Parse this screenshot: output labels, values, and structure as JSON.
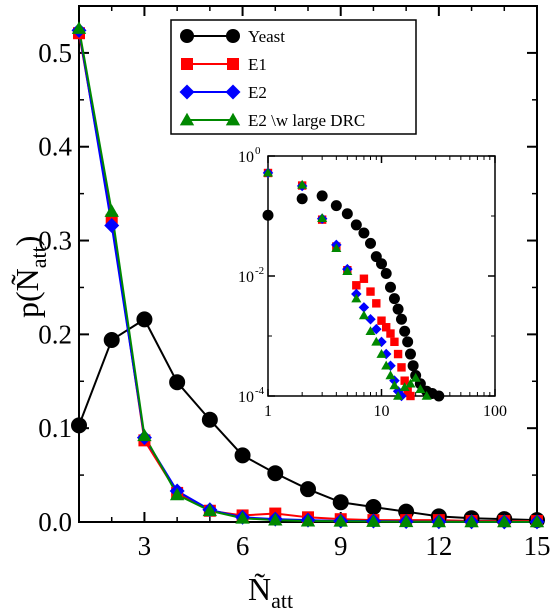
{
  "chart_data": [
    {
      "type": "line",
      "title": "",
      "xlabel": "Ñ",
      "xlabel_sub": "att",
      "ylabel": "p(Ñ",
      "ylabel_sub": "att",
      "ylabel_close": ")",
      "xlim": [
        1,
        15
      ],
      "ylim": [
        0,
        0.55
      ],
      "xticks": [
        3,
        6,
        9,
        12,
        15
      ],
      "yticks": [
        0.0,
        0.1,
        0.2,
        0.3,
        0.4,
        0.5
      ],
      "ytick_labels": [
        "0.0",
        "0.1",
        "0.2",
        "0.3",
        "0.4",
        "0.5"
      ],
      "legend_position": "top-center",
      "series": [
        {
          "name": "Yeast",
          "color": "#000000",
          "marker": "circle",
          "x": [
            1,
            2,
            3,
            4,
            5,
            6,
            7,
            8,
            9,
            10,
            11,
            12,
            13,
            14,
            15
          ],
          "values": [
            0.103,
            0.194,
            0.216,
            0.149,
            0.109,
            0.071,
            0.052,
            0.035,
            0.021,
            0.016,
            0.011,
            0.006,
            0.004,
            0.003,
            0.002
          ]
        },
        {
          "name": "E1",
          "color": "#ff0000",
          "marker": "square",
          "x": [
            1,
            2,
            3,
            4,
            5,
            6,
            7,
            8,
            9,
            10,
            11,
            12,
            13,
            14,
            15
          ],
          "values": [
            0.521,
            0.322,
            0.087,
            0.031,
            0.012,
            0.007,
            0.009,
            0.005,
            0.003,
            0.002,
            0.002,
            0.002,
            0.001,
            0.001,
            0.001
          ]
        },
        {
          "name": "E2",
          "color": "#0000ff",
          "marker": "diamond",
          "x": [
            1,
            2,
            3,
            4,
            5,
            6,
            7,
            8,
            9,
            10,
            11,
            12,
            13,
            14,
            15
          ],
          "values": [
            0.524,
            0.316,
            0.09,
            0.033,
            0.013,
            0.005,
            0.003,
            0.002,
            0.001,
            0.001,
            0.0005,
            0.0003,
            0.0002,
            0.0001,
            0.0001
          ]
        },
        {
          "name": "E2 \\w large DRC",
          "color": "#008800",
          "marker": "triangle",
          "x": [
            1,
            2,
            3,
            4,
            5,
            6,
            7,
            8,
            9,
            10,
            11,
            12,
            13,
            14,
            15
          ],
          "values": [
            0.526,
            0.331,
            0.092,
            0.029,
            0.012,
            0.004,
            0.002,
            0.001,
            0.0008,
            0.0005,
            0.0003,
            0.0002,
            0.0001,
            0.0001,
            0.0001
          ]
        }
      ]
    },
    {
      "type": "scatter",
      "title": "",
      "xscale": "log",
      "yscale": "log",
      "xlim": [
        1,
        100
      ],
      "ylim": [
        0.0001,
        1
      ],
      "xticks": [
        1,
        10,
        100
      ],
      "xtick_labels": [
        "1",
        "10",
        "100"
      ],
      "yticks": [
        0.0001,
        0.01,
        1
      ],
      "ytick_labels": [
        "10",
        "10",
        "10"
      ],
      "ytick_exponents": [
        "-4",
        "-2",
        "0"
      ],
      "series": [
        {
          "name": "Yeast",
          "color": "#000000",
          "marker": "circle",
          "x": [
            1,
            2,
            3,
            4,
            5,
            6,
            7,
            8,
            9,
            10,
            11,
            12,
            13,
            14,
            15,
            16,
            17,
            18,
            19,
            20,
            22,
            25,
            28,
            32
          ],
          "values": [
            0.103,
            0.194,
            0.216,
            0.149,
            0.109,
            0.071,
            0.052,
            0.035,
            0.021,
            0.016,
            0.011,
            0.0065,
            0.0042,
            0.0028,
            0.0019,
            0.0012,
            0.0008,
            0.0005,
            0.00032,
            0.00022,
            0.00016,
            0.00012,
            0.00011,
            0.0001
          ]
        },
        {
          "name": "E1",
          "color": "#ff0000",
          "marker": "square",
          "x": [
            1,
            2,
            3,
            4,
            5,
            6,
            7,
            8,
            9,
            10,
            11,
            12,
            13,
            14,
            15,
            16,
            17,
            18
          ],
          "values": [
            0.521,
            0.322,
            0.087,
            0.031,
            0.0125,
            0.007,
            0.009,
            0.0055,
            0.0035,
            0.0018,
            0.0014,
            0.0011,
            0.0008,
            0.0005,
            0.0003,
            0.00018,
            0.00012,
            0.0001
          ]
        },
        {
          "name": "E2",
          "color": "#0000ff",
          "marker": "diamond",
          "x": [
            1,
            2,
            3,
            4,
            5,
            6,
            7,
            8,
            9,
            10,
            11,
            12,
            13,
            14,
            15
          ],
          "values": [
            0.524,
            0.316,
            0.09,
            0.033,
            0.013,
            0.005,
            0.003,
            0.0019,
            0.0013,
            0.0008,
            0.0005,
            0.00032,
            0.00018,
            0.00012,
            0.0001
          ]
        },
        {
          "name": "E2 \\w large DRC",
          "color": "#008800",
          "marker": "triangle",
          "x": [
            1,
            2,
            3,
            4,
            5,
            6,
            7,
            8,
            9,
            10,
            11,
            12,
            13,
            14,
            16,
            18,
            20,
            22,
            25
          ],
          "values": [
            0.526,
            0.331,
            0.092,
            0.029,
            0.012,
            0.0042,
            0.0022,
            0.0012,
            0.0008,
            0.0005,
            0.00032,
            0.00022,
            0.00015,
            0.0001,
            0.00014,
            0.00016,
            0.0002,
            0.00013,
            0.0001
          ]
        }
      ]
    }
  ]
}
